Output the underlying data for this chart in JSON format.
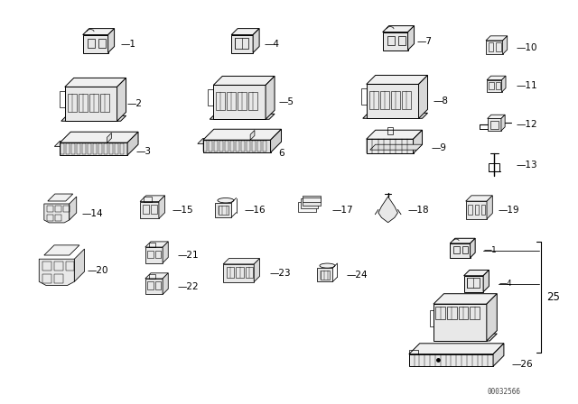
{
  "bg_color": "#ffffff",
  "fig_width": 6.4,
  "fig_height": 4.48,
  "dpi": 100,
  "watermark": "00032566",
  "line_color": "#000000",
  "text_color": "#000000",
  "label_fontsize": 7.5,
  "watermark_fontsize": 5.5
}
